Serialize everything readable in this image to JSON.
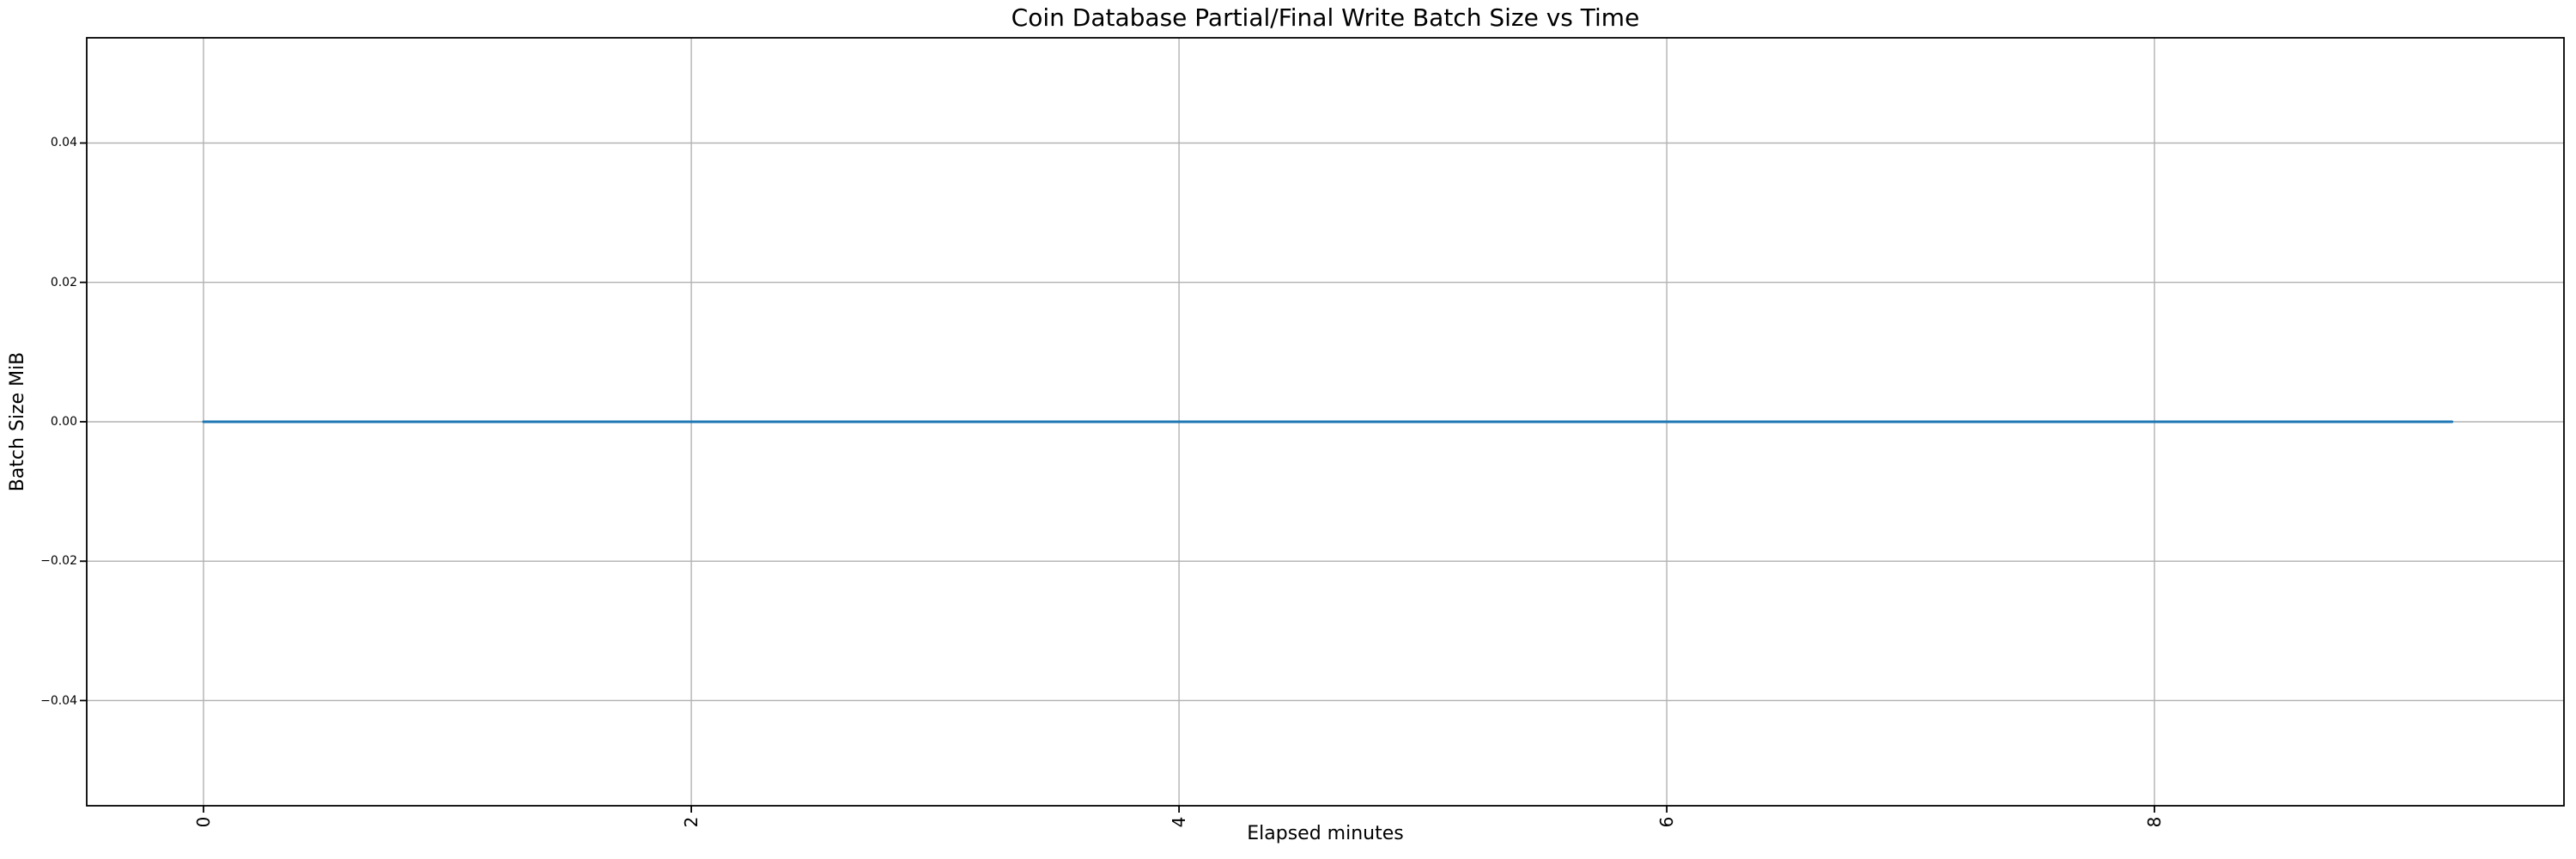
{
  "chart_data": {
    "type": "line",
    "title": "Coin Database Partial/Final Write Batch Size vs Time",
    "xlabel": "Elapsed minutes",
    "ylabel": "Batch Size MiB",
    "grid": true,
    "legend": "none",
    "xlim": [
      -0.479,
      9.679
    ],
    "ylim": [
      -0.0551,
      0.0551
    ],
    "x_ticks": [
      0,
      2,
      4,
      6,
      8
    ],
    "x_tick_labels": [
      "0",
      "2",
      "4",
      "6",
      "8"
    ],
    "x_tick_rotation_deg": 90,
    "y_ticks": [
      0.04,
      0.02,
      0,
      -0.02,
      -0.04
    ],
    "y_tick_labels": [
      "0.04",
      "0.02",
      "0.00",
      "−0.02",
      "−0.04"
    ],
    "series": [
      {
        "name": "batch_size_mib",
        "color": "#1f77b4",
        "x": [
          0,
          9.22
        ],
        "y": [
          0,
          0
        ]
      }
    ],
    "colors": {
      "line": "#1f77b4",
      "grid": "#b2b2b2",
      "spine": "#000000",
      "text": "#000000",
      "background": "#ffffff"
    }
  }
}
